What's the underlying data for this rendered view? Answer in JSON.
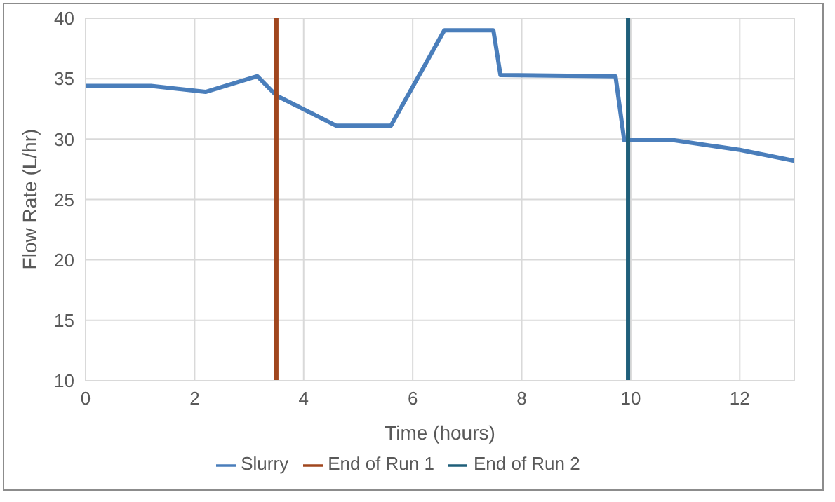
{
  "chart_data": {
    "type": "line",
    "xlabel": "Time (hours)",
    "ylabel": "Flow Rate (L/hr)",
    "xlim": [
      0,
      13
    ],
    "xticks": [
      0,
      2,
      4,
      6,
      8,
      10,
      12
    ],
    "ylim": [
      10,
      40
    ],
    "yticks": [
      10,
      15,
      20,
      25,
      30,
      35,
      40
    ],
    "grid": true,
    "legend": "bottom",
    "marker": "none",
    "series": [
      {
        "name": "Slurry",
        "color": "#4a7ebb",
        "x": [
          0,
          1.2,
          2.2,
          3.15,
          3.5,
          4.6,
          5.6,
          6.58,
          7.48,
          7.61,
          9.72,
          9.88,
          10.8,
          12,
          13
        ],
        "values": [
          34.4,
          34.4,
          33.9,
          35.2,
          33.6,
          31.1,
          31.1,
          39,
          39,
          35.3,
          35.2,
          29.9,
          29.9,
          29.1,
          28.2
        ]
      },
      {
        "name": "End of Run 1",
        "color": "#a0461e",
        "x": [
          3.5,
          3.5
        ],
        "values": [
          10,
          40
        ]
      },
      {
        "name": "End of Run 2",
        "color": "#1f5f7a",
        "x": [
          9.95,
          9.95
        ],
        "values": [
          10,
          40
        ]
      }
    ]
  }
}
